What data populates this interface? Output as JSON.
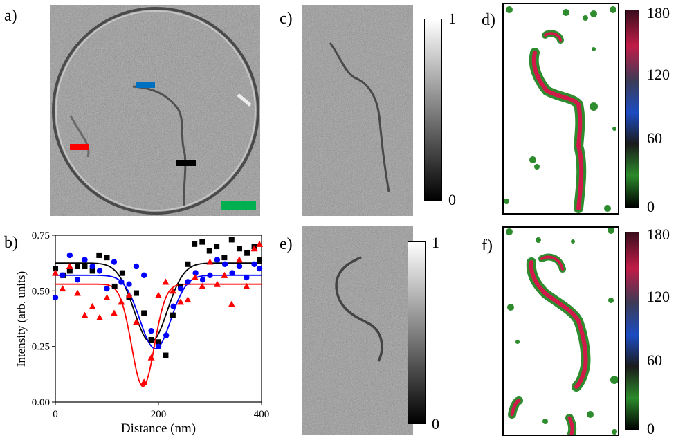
{
  "labels": {
    "a": "a)",
    "b": "b)",
    "c": "c)",
    "d": "d)",
    "e": "e)",
    "f": "f)"
  },
  "colorbar_gray": {
    "max": "1",
    "min": "0"
  },
  "colorbar_angle": {
    "t180": "180",
    "t120": "120",
    "t60": "60",
    "t0": "0"
  },
  "colors": {
    "red": "#ff0000",
    "blue": "#0070c0",
    "black": "#000000",
    "green": "#00b050"
  },
  "chart_data": {
    "type": "scatter",
    "xlabel": "Distance (nm)",
    "ylabel": "Intensity (arb. units)",
    "xlim": [
      0,
      400
    ],
    "ylim": [
      0,
      0.75
    ],
    "xticks": [
      "0",
      "200",
      "400"
    ],
    "yticks": [
      "0.00",
      "0.25",
      "0.50",
      "0.75"
    ],
    "series": [
      {
        "color": "#000000",
        "marker": "square",
        "x": [
          0,
          15,
          28,
          43,
          57,
          72,
          85,
          100,
          115,
          130,
          143,
          157,
          172,
          186,
          200,
          214,
          228,
          243,
          257,
          270,
          285,
          299,
          313,
          328,
          342,
          357,
          372,
          386,
          396
        ],
        "y": [
          0.6,
          0.57,
          0.59,
          0.61,
          0.61,
          0.59,
          0.66,
          0.65,
          0.52,
          0.58,
          0.47,
          0.49,
          0.4,
          0.28,
          0.27,
          0.21,
          0.39,
          0.52,
          0.62,
          0.71,
          0.72,
          0.68,
          0.7,
          0.65,
          0.73,
          0.69,
          0.67,
          0.7,
          0.64
        ],
        "fit": {
          "baseline": 0.625,
          "depth": 0.355,
          "center": 185,
          "width": 32
        }
      },
      {
        "color": "#0000ff",
        "marker": "circle",
        "x": [
          0,
          14,
          28,
          43,
          57,
          72,
          86,
          100,
          114,
          128,
          143,
          157,
          172,
          186,
          200,
          215,
          229,
          243,
          257,
          272,
          286,
          300,
          314,
          329,
          343,
          357,
          371,
          386,
          396
        ],
        "y": [
          0.47,
          0.57,
          0.66,
          0.55,
          0.64,
          0.61,
          0.59,
          0.51,
          0.63,
          0.54,
          0.53,
          0.61,
          0.57,
          0.32,
          0.25,
          0.3,
          0.43,
          0.51,
          0.54,
          0.58,
          0.55,
          0.57,
          0.64,
          0.62,
          0.58,
          0.61,
          0.56,
          0.62,
          0.6
        ],
        "fit": {
          "baseline": 0.57,
          "depth": 0.33,
          "center": 194,
          "width": 30
        }
      },
      {
        "color": "#ff0000",
        "marker": "triangle",
        "x": [
          0,
          14,
          28,
          43,
          57,
          72,
          86,
          100,
          114,
          128,
          143,
          157,
          172,
          186,
          200,
          214,
          228,
          243,
          257,
          271,
          285,
          300,
          314,
          328,
          342,
          357,
          371,
          386,
          396
        ],
        "y": [
          0.58,
          0.51,
          0.61,
          0.49,
          0.39,
          0.43,
          0.38,
          0.47,
          0.4,
          0.45,
          0.48,
          0.36,
          0.09,
          0.2,
          0.48,
          0.54,
          0.5,
          0.45,
          0.46,
          0.56,
          0.52,
          0.63,
          0.53,
          0.57,
          0.44,
          0.64,
          0.52,
          0.69,
          0.71
        ],
        "fit": {
          "baseline": 0.53,
          "depth": 0.46,
          "center": 170,
          "width": 22
        }
      }
    ]
  }
}
